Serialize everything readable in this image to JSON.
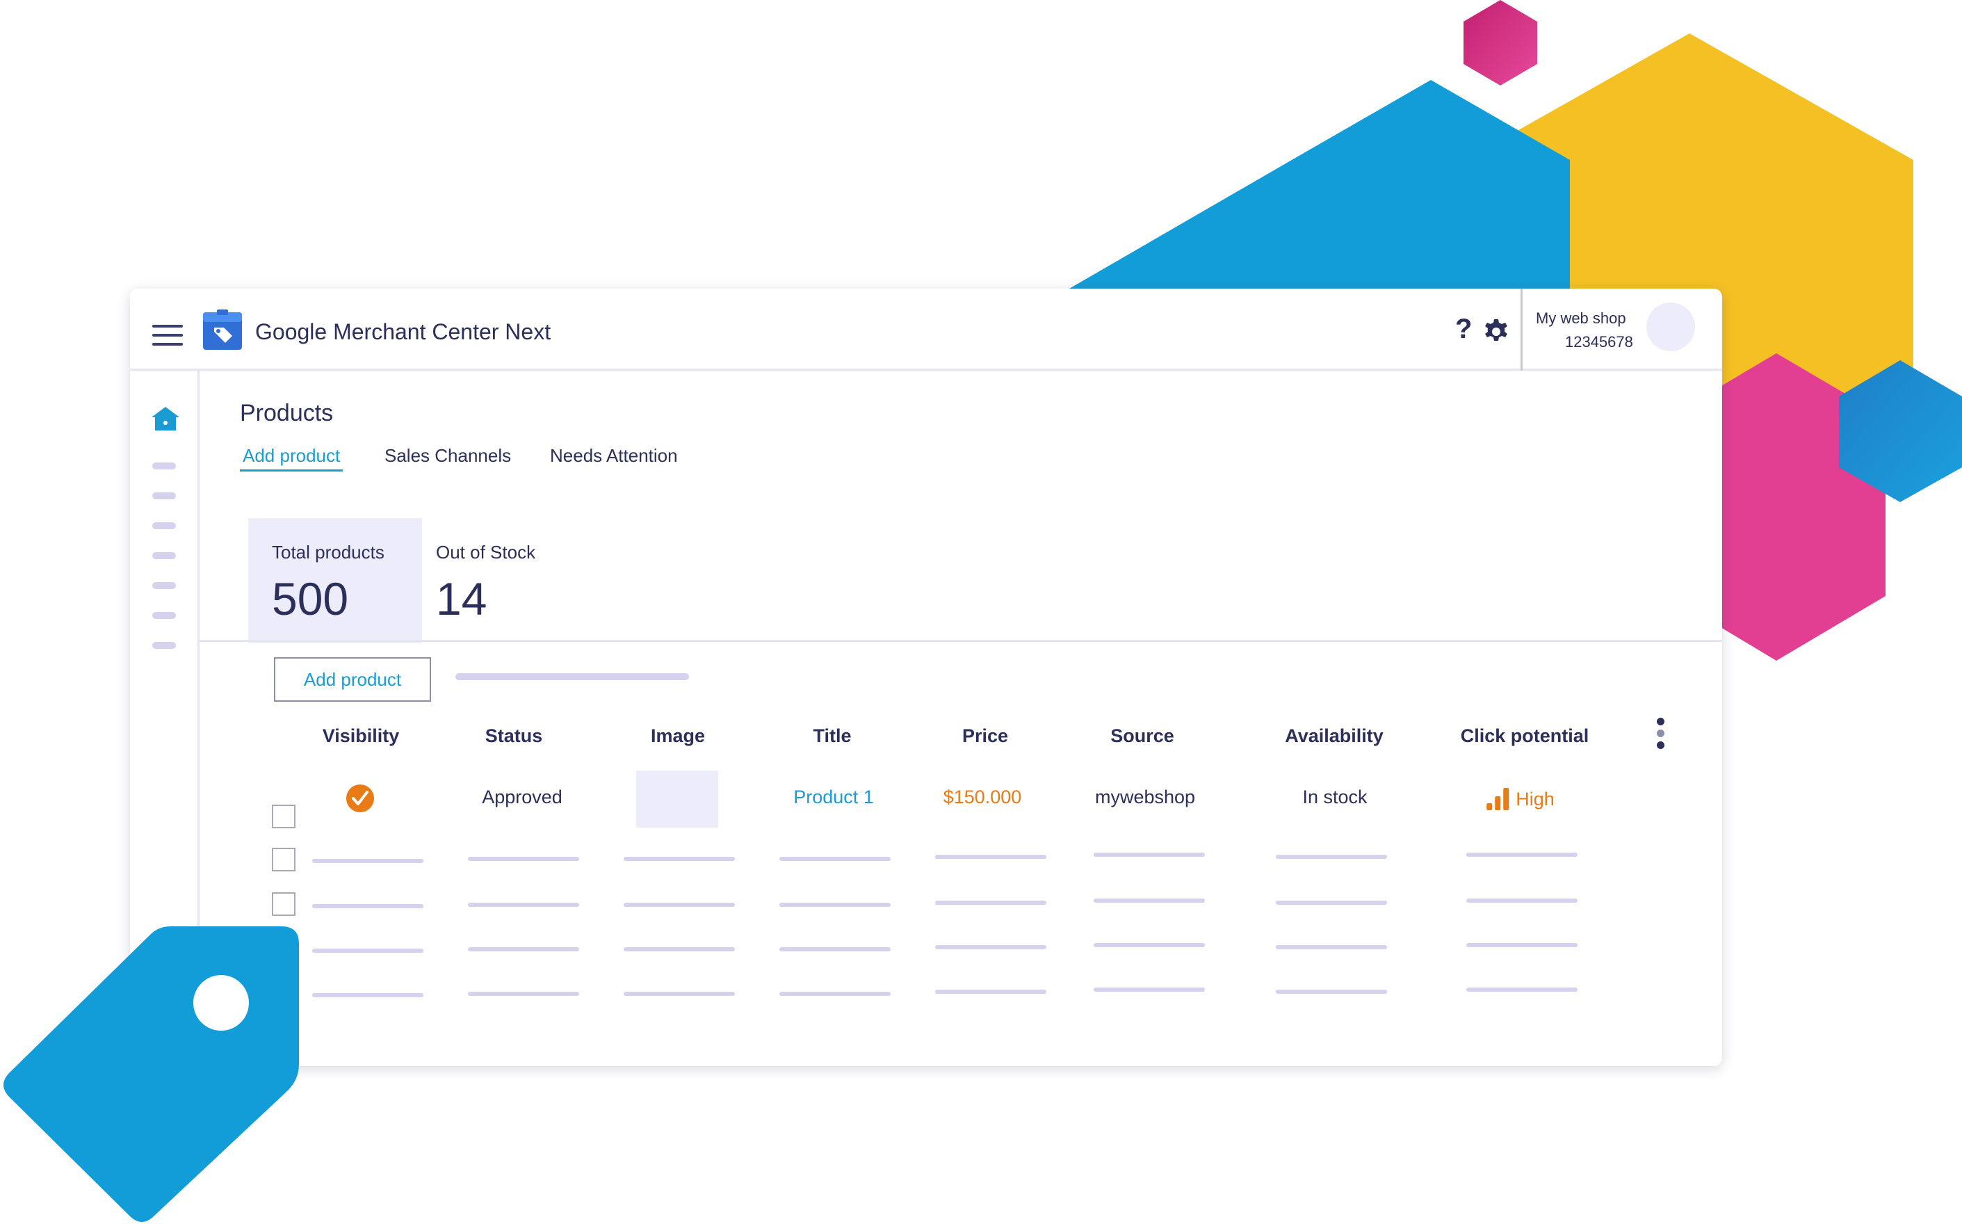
{
  "header": {
    "app_title": "Google Merchant Center Next",
    "help_label": "?",
    "account": {
      "name": "My web shop",
      "id": "12345678"
    }
  },
  "page": {
    "title": "Products",
    "tabs": [
      {
        "label": "Add product",
        "active": true
      },
      {
        "label": "Sales Channels",
        "active": false
      },
      {
        "label": "Needs Attention",
        "active": false
      }
    ]
  },
  "stats": {
    "total_label": "Total products",
    "total_value": "500",
    "oos_label": "Out of Stock",
    "oos_value": "14"
  },
  "toolbar": {
    "add_product_label": "Add product"
  },
  "table": {
    "columns": [
      "Visibility",
      "Status",
      "Image",
      "Title",
      "Price",
      "Source",
      "Availability",
      "Click potential"
    ],
    "rows": [
      {
        "visibility": "check-circle-icon",
        "status": "Approved",
        "title": "Product 1",
        "price": "$150.000",
        "source": "mywebshop",
        "availability": "In stock",
        "click_potential": "High"
      }
    ]
  },
  "colors": {
    "accent_blue": "#1a9cd2",
    "accent_orange": "#e87b16",
    "text_dark": "#2b2f5a",
    "tint_lavender": "#ececfb",
    "deco_yellow": "#f5c023",
    "deco_pink": "#e23f93",
    "deco_blue": "#129dd9"
  }
}
